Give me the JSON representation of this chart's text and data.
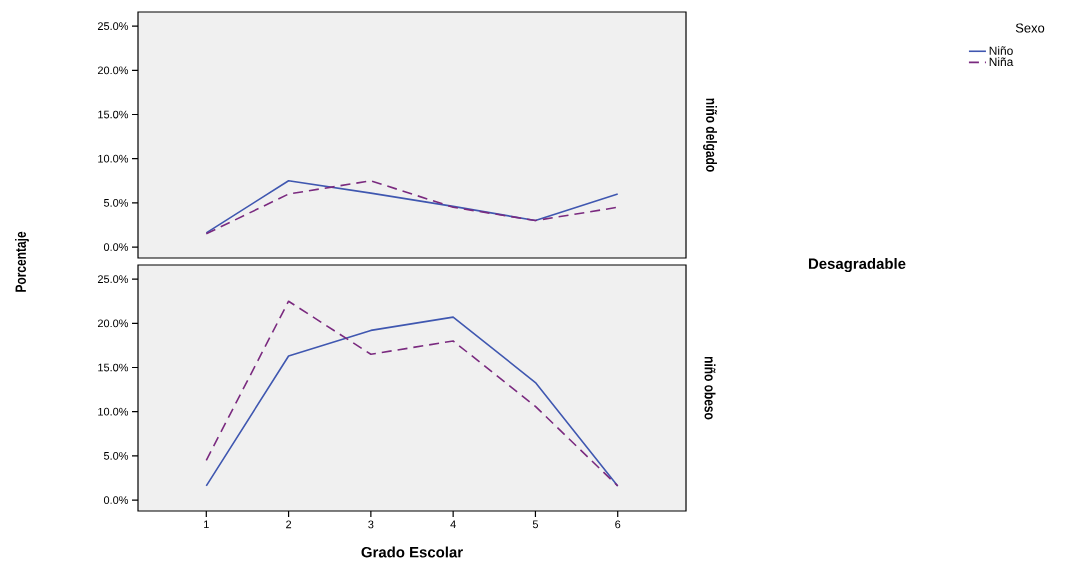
{
  "chart_data": [
    {
      "type": "line",
      "annotations": [
        "niño delgado",
        "Desagradable"
      ],
      "ylabel": "Porcentaje",
      "legend_title": "Sexo",
      "legend": "top right",
      "x": [
        1,
        2,
        3,
        4,
        5,
        6
      ],
      "xlim": [
        0.17,
        6.83
      ],
      "ylim": [
        -1.24,
        26.6
      ],
      "yticks": [
        {
          "value": 0,
          "label": "0.0%"
        },
        {
          "value": 5,
          "label": "5.0%"
        },
        {
          "value": 10,
          "label": "10.0%"
        },
        {
          "value": 15,
          "label": "15.0%"
        },
        {
          "value": 20,
          "label": "20.0%"
        },
        {
          "value": 25,
          "label": "25.0%"
        }
      ],
      "tick_labels": "y",
      "grid": false,
      "marker": "none",
      "series": [
        {
          "name": "Niño",
          "color": "#3f57b0",
          "line_style": "solid",
          "values": [
            1.6,
            7.5,
            6.1,
            4.6,
            3.0,
            6.0
          ]
        },
        {
          "name": "Niña",
          "color": "#7a2a7f",
          "line_style": "dashed",
          "values": [
            1.5,
            6.0,
            7.5,
            4.5,
            3.0,
            4.5
          ]
        }
      ]
    },
    {
      "type": "line",
      "annotations": [
        "niño obeso"
      ],
      "xlabel": "Grado Escolar",
      "x": [
        1,
        2,
        3,
        4,
        5,
        6
      ],
      "xlim": [
        0.17,
        6.83
      ],
      "xticks": [
        1,
        2,
        3,
        4,
        5,
        6
      ],
      "ylim": [
        -1.24,
        26.6
      ],
      "yticks": [
        {
          "value": 0,
          "label": "0.0%"
        },
        {
          "value": 5,
          "label": "5.0%"
        },
        {
          "value": 10,
          "label": "10.0%"
        },
        {
          "value": 15,
          "label": "15.0%"
        },
        {
          "value": 20,
          "label": "20.0%"
        },
        {
          "value": 25,
          "label": "25.0%"
        }
      ],
      "grid": false,
      "marker": "none",
      "series": [
        {
          "color": "#3f57b0",
          "line_style": "solid",
          "values": [
            1.6,
            16.3,
            19.2,
            20.7,
            13.3,
            1.6
          ]
        },
        {
          "color": "#7a2a7f",
          "line_style": "dashed",
          "values": [
            4.5,
            22.5,
            16.5,
            18.0,
            10.6,
            1.6
          ]
        }
      ]
    }
  ]
}
